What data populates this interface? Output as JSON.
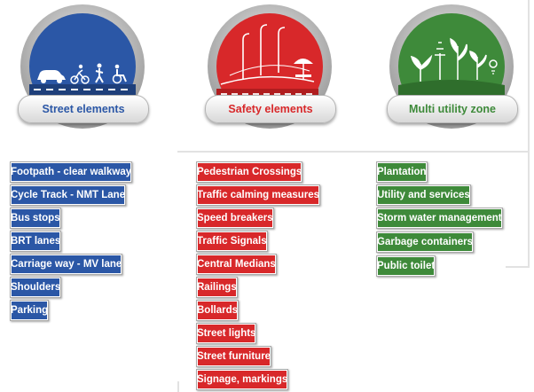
{
  "columns": [
    {
      "key": "street",
      "title": "Street elements",
      "color": "#2b57a6",
      "icon": "street-users-icon",
      "items": [
        "Footpath - clear walkway",
        "Cycle Track - NMT Lane",
        "Bus stops",
        "BRT lanes",
        "Carriage way - MV lane",
        "Shoulders",
        "Parking"
      ]
    },
    {
      "key": "safety",
      "title": "Safety elements",
      "color": "#d8282a",
      "icon": "road-safety-icon",
      "items": [
        "Pedestrian Crossings",
        "Traffic calming measures",
        "Speed breakers",
        "Traffic Signals",
        "Central Medians",
        "Railings",
        "Bollards",
        "Street lights",
        "Street furniture",
        "Signage, markings"
      ]
    },
    {
      "key": "utility",
      "title": "Multi utility zone",
      "color": "#3e8a3a",
      "icon": "plants-utility-icon",
      "items": [
        "Plantation",
        "Utility and services",
        "Storm water management",
        "Garbage containers",
        "Public toilet"
      ]
    }
  ]
}
